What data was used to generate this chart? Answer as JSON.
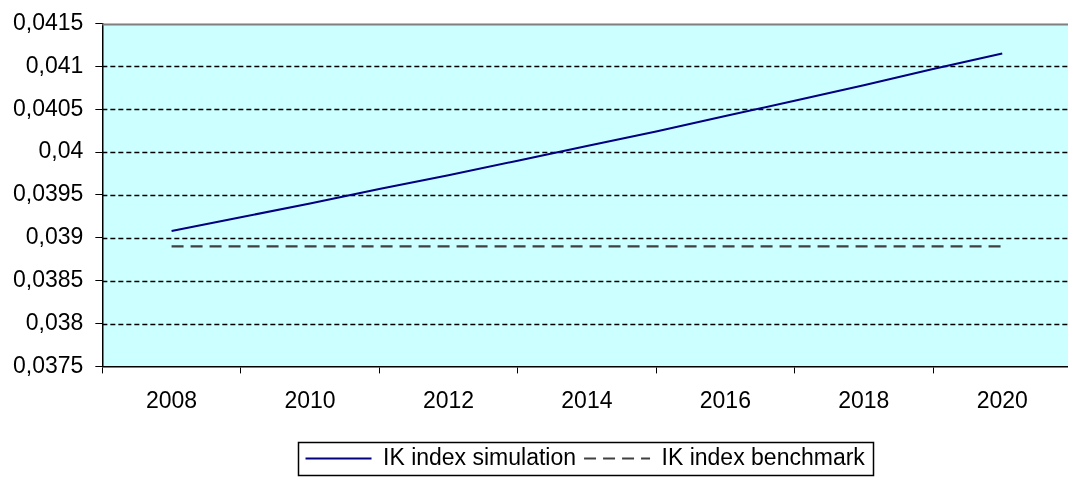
{
  "chart_data": {
    "type": "line",
    "x": [
      2008,
      2009,
      2010,
      2011,
      2012,
      2013,
      2014,
      2015,
      2016,
      2017,
      2018,
      2019,
      2020
    ],
    "series": [
      {
        "name": "IK index simulation",
        "color": "#000080",
        "values": [
          0.03908,
          0.03924,
          0.0394,
          0.03957,
          0.03973,
          0.0399,
          0.04007,
          0.04024,
          0.04042,
          0.0406,
          0.04078,
          0.04097,
          0.04115
        ]
      },
      {
        "name": "IK index benchmark",
        "color": "#404040",
        "line_style": "dashed",
        "values": [
          0.0389,
          0.0389,
          0.0389,
          0.0389,
          0.0389,
          0.0389,
          0.0389,
          0.0389,
          0.0389,
          0.0389,
          0.0389,
          0.0389,
          0.0389
        ]
      }
    ],
    "xlim": [
      2007,
      2020.95
    ],
    "xticks": [
      {
        "value": 2007,
        "label": null
      },
      2008,
      {
        "value": 2009,
        "label": null
      },
      2010,
      {
        "value": 2011,
        "label": null
      },
      2012,
      {
        "value": 2013,
        "label": null
      },
      2014,
      {
        "value": 2015,
        "label": null
      },
      2016,
      {
        "value": 2017,
        "label": null
      },
      2018,
      {
        "value": 2019,
        "label": null
      },
      2020
    ],
    "ylim": [
      0.0375,
      0.0415
    ],
    "yticks": [
      {
        "value": 0.0375,
        "label": "0,0375"
      },
      {
        "value": 0.038,
        "label": "0,038"
      },
      {
        "value": 0.0385,
        "label": "0,0385"
      },
      {
        "value": 0.039,
        "label": "0,039"
      },
      {
        "value": 0.0395,
        "label": "0,0395"
      },
      {
        "value": 0.04,
        "label": "0,04"
      },
      {
        "value": 0.0405,
        "label": "0,0405"
      },
      {
        "value": 0.041,
        "label": "0,041"
      },
      {
        "value": 0.0415,
        "label": "0,0415"
      }
    ],
    "grid": "y",
    "legend": "bottom"
  }
}
